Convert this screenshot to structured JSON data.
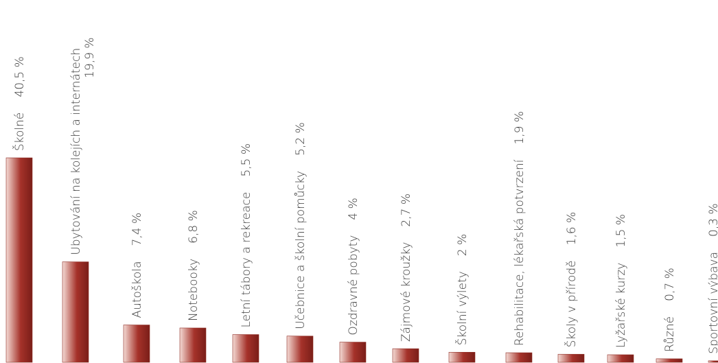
{
  "chart_data": {
    "type": "bar",
    "title": "",
    "xlabel": "",
    "ylabel": "",
    "ylim": [
      0,
      40.5
    ],
    "grid": false,
    "legend": "none",
    "bar_color": "#a5322a",
    "bar_highlight": "#f4dad4",
    "categories": [
      "Školné",
      "Ubytování na kolejích a internátech",
      "Autoškola",
      "Notebooky",
      "Letní tábory a rekreace",
      "Učebnice a školní pomůcky",
      "Ozdravné pobyty",
      "Zájmové kroužky",
      "Školní výlety",
      "Rehabilitace, lékařská potvrzení",
      "Školy v přírodě",
      "Lyžařské kurzy",
      "Různé",
      "Sportovní výbava"
    ],
    "values": [
      40.5,
      19.9,
      7.4,
      6.8,
      5.5,
      5.2,
      4,
      2.7,
      2,
      1.9,
      1.6,
      1.5,
      0.7,
      0.3
    ],
    "value_labels": [
      "40,5 %",
      "19,9 %",
      "7,4 %",
      "6,8 %",
      "5,5 %",
      "5,2 %",
      "4 %",
      "2,7 %",
      "2 %",
      "1,9 %",
      "1,6 %",
      "1,5 %",
      "0,7 %",
      "0,3 %"
    ]
  }
}
